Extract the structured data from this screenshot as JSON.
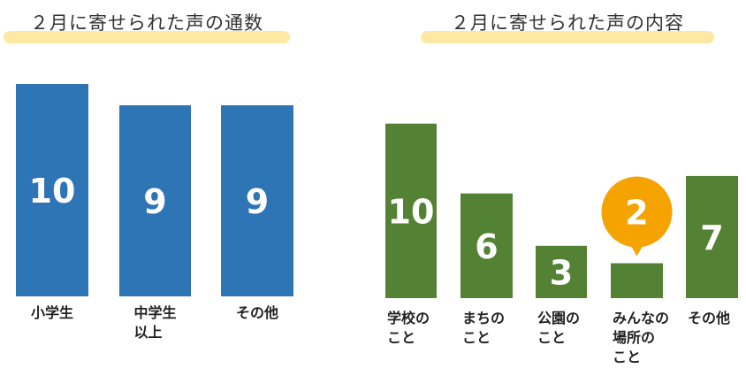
{
  "colors": {
    "left_bar": "#2e75b6",
    "right_bar": "#548235",
    "title_highlight": "#ffe699",
    "callout": "#f4a300",
    "value_text": "#ffffff"
  },
  "chart_data": [
    {
      "type": "bar",
      "title": "２月に寄せられた声の通数",
      "categories": [
        "小学生",
        "中学生\n以上",
        "その他"
      ],
      "values": [
        10,
        9,
        9
      ],
      "ylim": [
        0,
        10
      ],
      "grid": false,
      "legend": "none"
    },
    {
      "type": "bar",
      "title": "２月に寄せられた声の内容",
      "categories": [
        "学校の\nこと",
        "まちの\nこと",
        "公園の\nこと",
        "みんなの\n場所の\nこと",
        "その他"
      ],
      "values": [
        10,
        6,
        3,
        2,
        7
      ],
      "ylim": [
        0,
        11
      ],
      "grid": false,
      "legend": "none",
      "annotations": [
        {
          "category": "みんなの\n場所の\nこと",
          "text": "2",
          "style": "callout"
        }
      ]
    }
  ]
}
